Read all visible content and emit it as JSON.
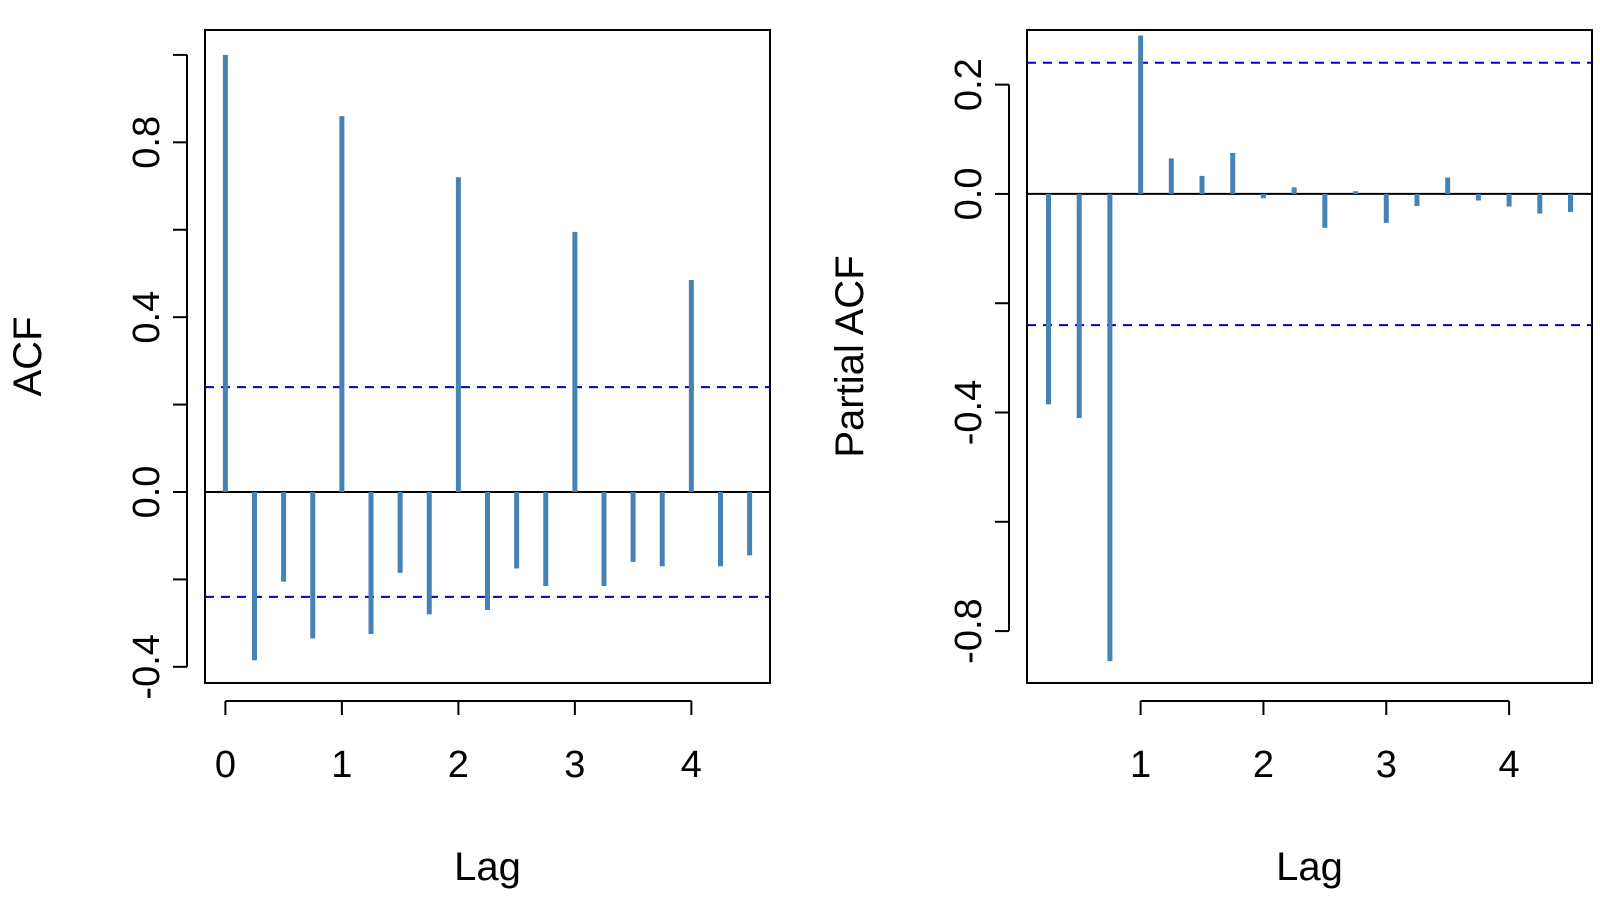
{
  "colors": {
    "bar": "#4682B4",
    "confidence_line": "#0000CD",
    "axis": "#000000"
  },
  "chart_data": [
    {
      "type": "bar",
      "subtype": "acf",
      "xlabel": "Lag",
      "ylabel": "ACF",
      "xlim": [
        -0.175,
        4.675
      ],
      "ylim": [
        -0.437,
        1.057
      ],
      "xticks": [
        {
          "value": 0,
          "label": "0"
        },
        {
          "value": 1,
          "label": "1"
        },
        {
          "value": 2,
          "label": "2"
        },
        {
          "value": 3,
          "label": "3"
        },
        {
          "value": 4,
          "label": "4"
        }
      ],
      "yticks": [
        {
          "value": -0.4,
          "label": "-0.4"
        },
        {
          "value": -0.2,
          "label": ""
        },
        {
          "value": 0.0,
          "label": "0.0"
        },
        {
          "value": 0.2,
          "label": ""
        },
        {
          "value": 0.4,
          "label": "0.4"
        },
        {
          "value": 0.6,
          "label": ""
        },
        {
          "value": 0.8,
          "label": "0.8"
        },
        {
          "value": 1.0,
          "label": ""
        }
      ],
      "confidence_bounds": [
        0.24,
        -0.24
      ],
      "x": [
        0,
        0.25,
        0.5,
        0.75,
        1.0,
        1.25,
        1.5,
        1.75,
        2.0,
        2.25,
        2.5,
        2.75,
        3.0,
        3.25,
        3.5,
        3.75,
        4.0,
        4.25,
        4.5
      ],
      "values": [
        1.0,
        -0.385,
        -0.205,
        -0.335,
        0.86,
        -0.325,
        -0.185,
        -0.28,
        0.72,
        -0.27,
        -0.175,
        -0.215,
        0.595,
        -0.215,
        -0.16,
        -0.17,
        0.485,
        -0.17,
        -0.145
      ],
      "grid": false,
      "legend": "none"
    },
    {
      "type": "bar",
      "subtype": "pacf",
      "xlabel": "Lag",
      "ylabel": "Partial ACF",
      "xlim": [
        0.075,
        4.675
      ],
      "ylim": [
        -0.895,
        0.3
      ],
      "xticks": [
        {
          "value": 1,
          "label": "1"
        },
        {
          "value": 2,
          "label": "2"
        },
        {
          "value": 3,
          "label": "3"
        },
        {
          "value": 4,
          "label": "4"
        }
      ],
      "yticks": [
        {
          "value": -0.8,
          "label": "-0.8"
        },
        {
          "value": -0.6,
          "label": ""
        },
        {
          "value": -0.4,
          "label": "-0.4"
        },
        {
          "value": -0.2,
          "label": ""
        },
        {
          "value": 0.0,
          "label": "0.0"
        },
        {
          "value": 0.2,
          "label": "0.2"
        }
      ],
      "confidence_bounds": [
        0.24,
        -0.24
      ],
      "x": [
        0.25,
        0.5,
        0.75,
        1.0,
        1.25,
        1.5,
        1.75,
        2.0,
        2.25,
        2.5,
        2.75,
        3.0,
        3.25,
        3.5,
        3.75,
        4.0,
        4.25,
        4.5
      ],
      "values": [
        -0.385,
        -0.41,
        -0.855,
        0.29,
        0.065,
        0.033,
        0.075,
        -0.008,
        0.012,
        -0.062,
        0.005,
        -0.053,
        -0.022,
        0.03,
        -0.012,
        -0.023,
        -0.036,
        -0.033
      ],
      "grid": false,
      "legend": "none"
    }
  ]
}
